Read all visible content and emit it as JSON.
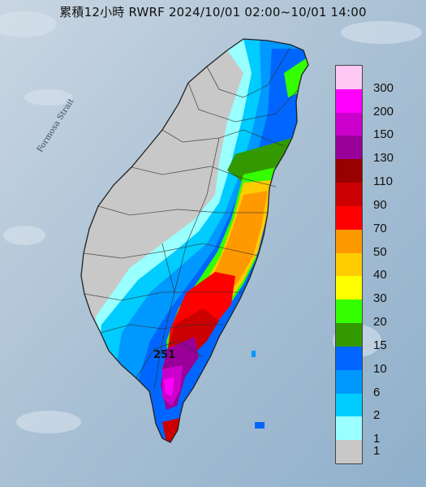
{
  "title": "累積12小時 RWRF 2024/10/01 02:00~10/01 14:00",
  "map_label": "Formosa Strait",
  "peak_value": "251",
  "legend": [
    {
      "label": "300",
      "color": "#ffc8f5"
    },
    {
      "label": "200",
      "color": "#ff00ff"
    },
    {
      "label": "150",
      "color": "#cc00cc"
    },
    {
      "label": "130",
      "color": "#990099"
    },
    {
      "label": "110",
      "color": "#990000"
    },
    {
      "label": "90",
      "color": "#cc0000"
    },
    {
      "label": "70",
      "color": "#ff0000"
    },
    {
      "label": "50",
      "color": "#ff9900"
    },
    {
      "label": "40",
      "color": "#ffcc00"
    },
    {
      "label": "30",
      "color": "#ffff00"
    },
    {
      "label": "20",
      "color": "#33ff00"
    },
    {
      "label": "15",
      "color": "#339900"
    },
    {
      "label": "10",
      "color": "#0066ff"
    },
    {
      "label": "6",
      "color": "#0099ff"
    },
    {
      "label": "2",
      "color": "#00ccff"
    },
    {
      "label": "1",
      "color": "#99ffff"
    },
    {
      "label": "",
      "color": "#c8c8c8"
    }
  ]
}
